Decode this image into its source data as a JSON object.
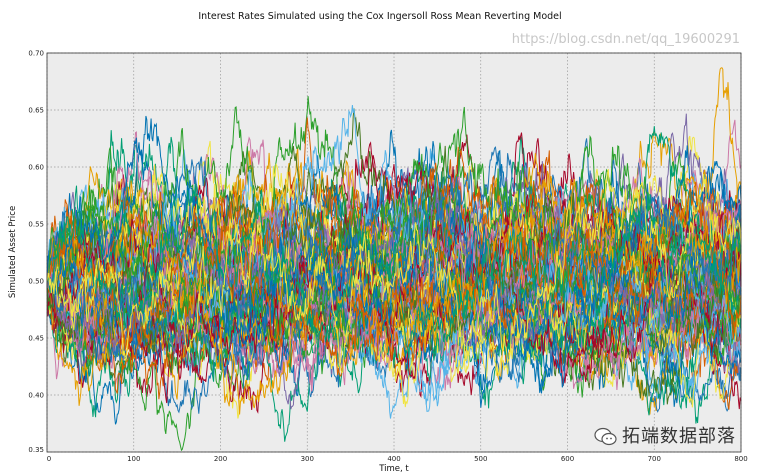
{
  "chart_data": {
    "type": "line",
    "title": "Interest Rates Simulated using the Cox Ingersoll Ross Mean Reverting Model",
    "xlabel": "Time, t",
    "ylabel": "Simulated Asset Price",
    "xlim": [
      0,
      800
    ],
    "ylim": [
      0.35,
      0.7
    ],
    "xticks": [
      "0",
      "100",
      "200",
      "300",
      "400",
      "500",
      "600",
      "700",
      "800"
    ],
    "yticks": [
      "0.35",
      "0.40",
      "0.45",
      "0.50",
      "0.55",
      "0.60",
      "0.65",
      "0.70"
    ],
    "grid": true,
    "series_description": "about 100 simulated CIR paths starting at 0.50, mean-reverting to 0.50, mostly between 0.40 and 0.60",
    "start_value": 0.5,
    "long_run_mean": 0.5,
    "n_steps": 800,
    "n_paths": 100,
    "colors": [
      "#0072B2",
      "#D55E00",
      "#009E73",
      "#F0E442",
      "#56B4E9",
      "#CC79A7",
      "#A60628",
      "#467821",
      "#7A68A6",
      "#E69F00",
      "#1f77b4",
      "#2ca02c"
    ]
  },
  "watermark": {
    "brand": "拓端数据部落",
    "url": "https://blog.csdn.net/qq_19600291"
  }
}
